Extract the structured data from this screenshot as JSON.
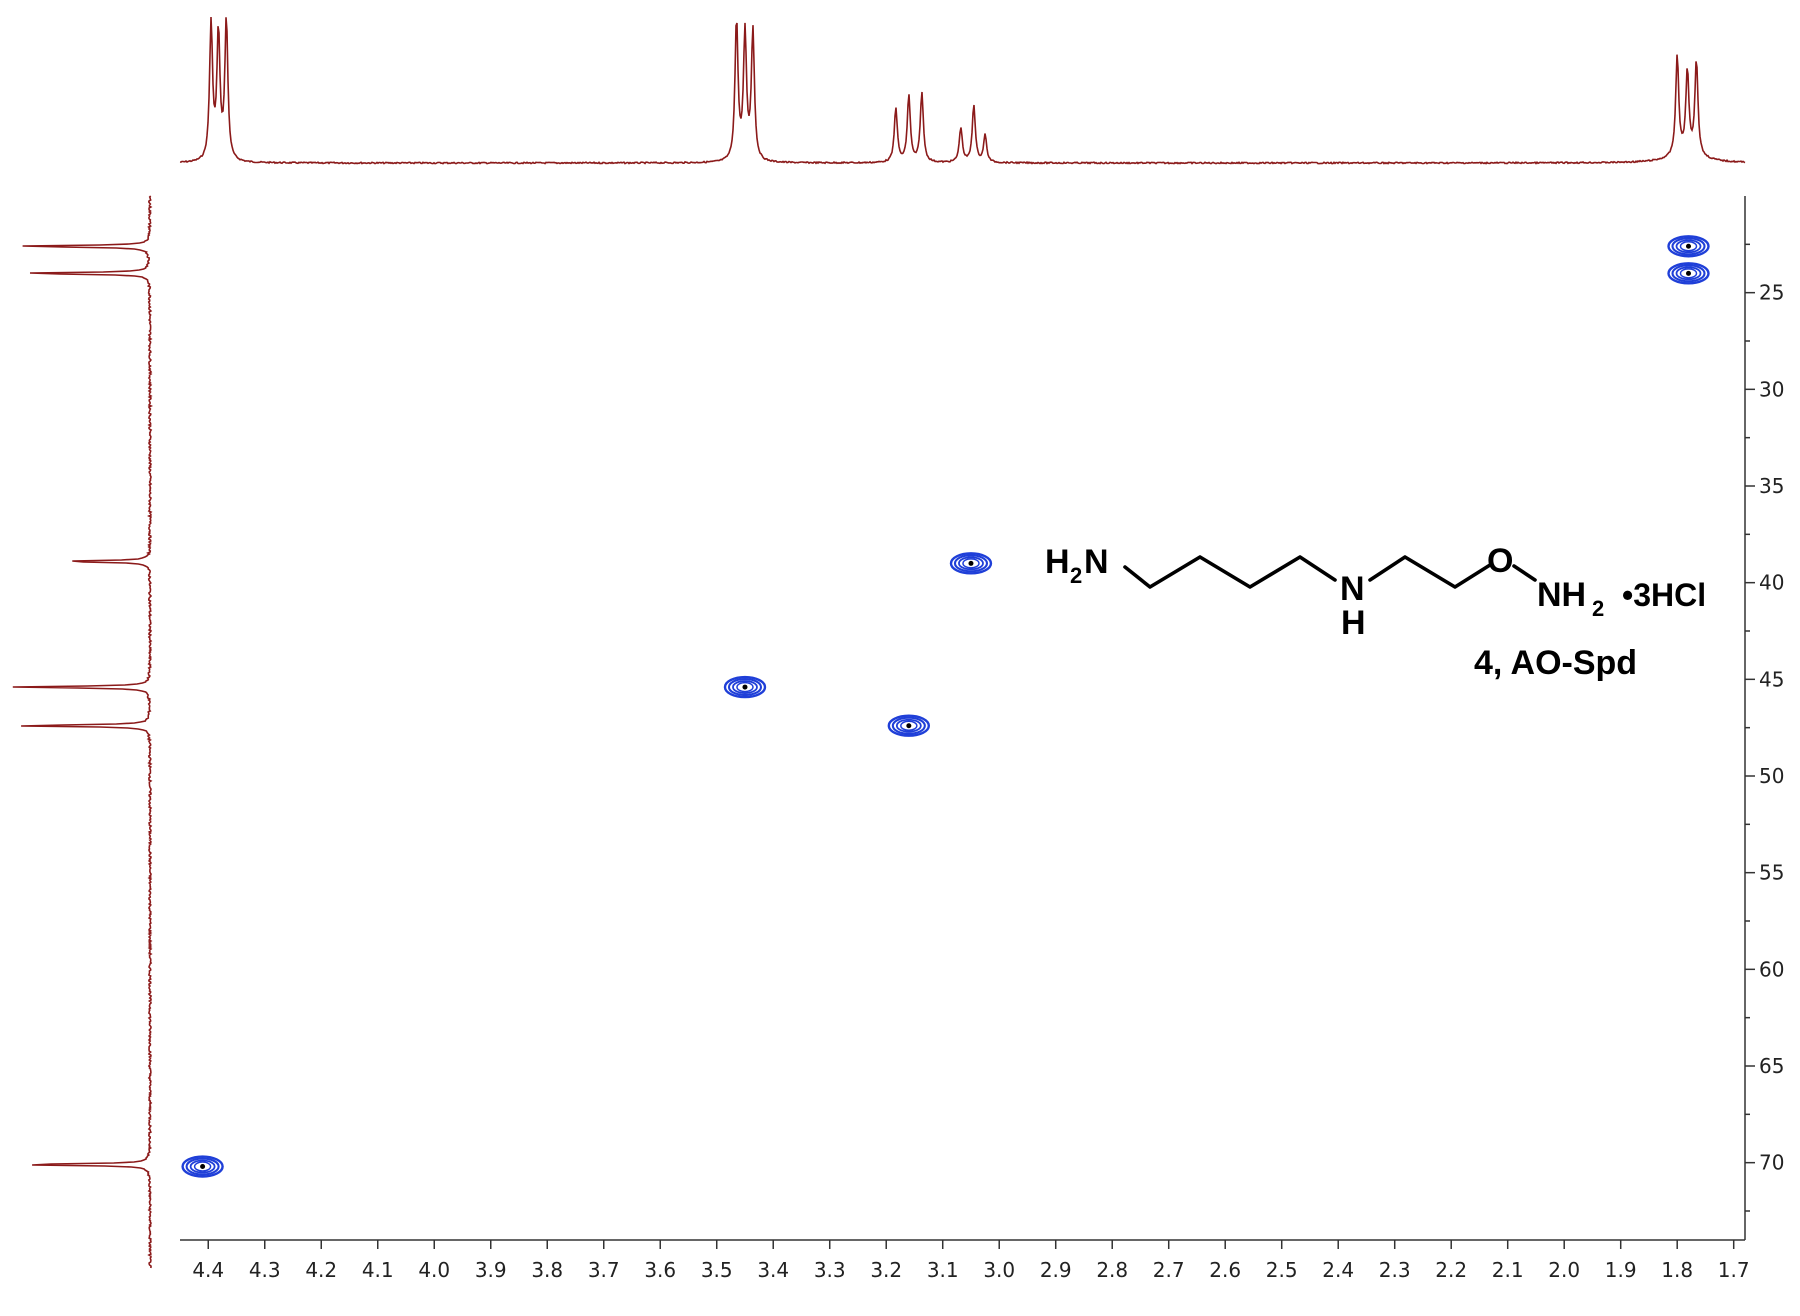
{
  "chart_data": {
    "type": "heatmap",
    "title": "",
    "xlabel": "",
    "ylabel": "",
    "x_axis": {
      "range": [
        4.45,
        1.68
      ],
      "reversed": true,
      "ticks": [
        4.4,
        4.3,
        4.2,
        4.1,
        4.0,
        3.9,
        3.8,
        3.7,
        3.6,
        3.5,
        3.4,
        3.3,
        3.2,
        3.1,
        3.0,
        2.9,
        2.8,
        2.7,
        2.6,
        2.5,
        2.4,
        2.3,
        2.2,
        2.1,
        2.0,
        1.9,
        1.8,
        1.7
      ],
      "tick_labels": [
        "4.4",
        "4.3",
        "4.2",
        "4.1",
        "4.0",
        "3.9",
        "3.8",
        "3.7",
        "3.6",
        "3.5",
        "3.4",
        "3.3",
        "3.2",
        "3.1",
        "3.0",
        "2.9",
        "2.8",
        "2.7",
        "2.6",
        "2.5",
        "2.4",
        "2.3",
        "2.2",
        "2.1",
        "2.0",
        "1.9",
        "1.8",
        "1.7"
      ]
    },
    "y_axis": {
      "range": [
        20,
        74
      ],
      "reversed": true,
      "position": "right",
      "ticks": [
        25,
        30,
        35,
        40,
        45,
        50,
        55,
        60,
        65,
        70
      ],
      "tick_labels": [
        "25",
        "30",
        "35",
        "40",
        "45",
        "50",
        "55",
        "60",
        "65",
        "70"
      ]
    },
    "grid": false,
    "cross_peaks": [
      {
        "x": 4.41,
        "y": 70.2
      },
      {
        "x": 3.45,
        "y": 45.4
      },
      {
        "x": 3.16,
        "y": 47.4
      },
      {
        "x": 3.05,
        "y": 39.0
      },
      {
        "x": 1.78,
        "y": 22.6
      },
      {
        "x": 1.78,
        "y": 24.0
      }
    ],
    "top_projection_peaks": [
      {
        "x": 4.395,
        "h": 0.9
      },
      {
        "x": 4.382,
        "h": 0.84
      },
      {
        "x": 4.368,
        "h": 0.93
      },
      {
        "x": 3.465,
        "h": 0.93
      },
      {
        "x": 3.45,
        "h": 0.84
      },
      {
        "x": 3.436,
        "h": 0.86
      },
      {
        "x": 3.183,
        "h": 0.36
      },
      {
        "x": 3.16,
        "h": 0.44
      },
      {
        "x": 3.137,
        "h": 0.46
      },
      {
        "x": 3.068,
        "h": 0.23
      },
      {
        "x": 3.045,
        "h": 0.38
      },
      {
        "x": 3.025,
        "h": 0.18
      },
      {
        "x": 1.8,
        "h": 0.66
      },
      {
        "x": 1.782,
        "h": 0.55
      },
      {
        "x": 1.766,
        "h": 0.63
      }
    ],
    "left_projection_peaks": [
      {
        "y": 22.6,
        "h": 1.0
      },
      {
        "y": 24.0,
        "h": 0.97
      },
      {
        "y": 38.9,
        "h": 0.66
      },
      {
        "y": 45.4,
        "h": 1.0
      },
      {
        "y": 47.4,
        "h": 1.0
      },
      {
        "y": 70.1,
        "h": 1.0
      }
    ],
    "colors": {
      "projection": "#8b1a1a",
      "contour": "#1f3fd8",
      "axis": "#333333"
    }
  },
  "structure": {
    "h2n_h": "H",
    "h2n_sub": "2",
    "h2n_n": "N",
    "nh_n": "N",
    "nh_h": "H",
    "o": "O",
    "nh2_n": "NH",
    "nh2_sub": "2",
    "salt": "•3HCl",
    "label": "4, AO-Spd"
  }
}
